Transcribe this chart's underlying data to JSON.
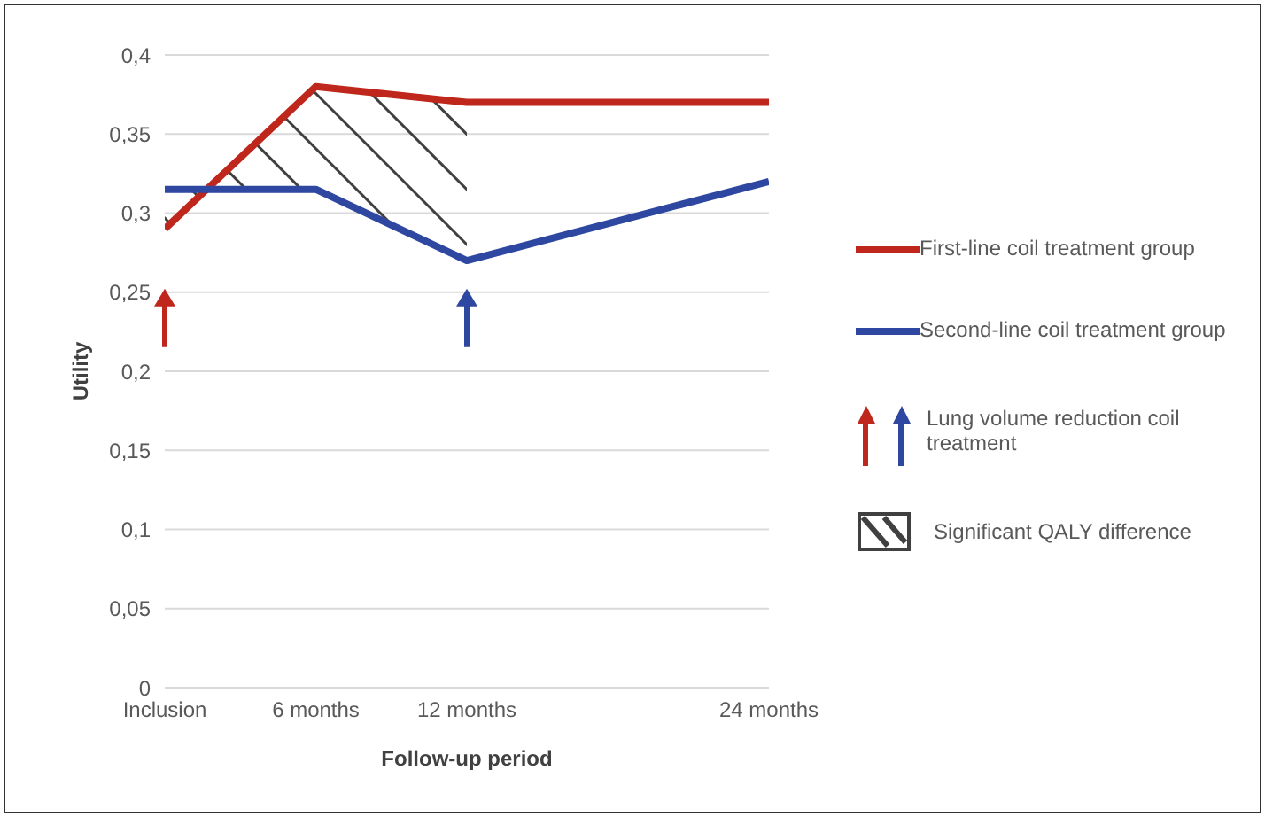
{
  "chart_data": {
    "type": "line",
    "xlabel": "Follow-up period",
    "ylabel": "Utility",
    "xlim": [
      0,
      24
    ],
    "xticks": [
      {
        "value": 0,
        "label": "Inclusion"
      },
      {
        "value": 6,
        "label": "6 months"
      },
      {
        "value": 12,
        "label": "12 months"
      },
      {
        "value": 24,
        "label": "24 months"
      }
    ],
    "ylim": [
      0,
      0.4
    ],
    "yticks": [
      0,
      {
        "value": 0.05,
        "label": "0,05"
      },
      {
        "value": 0.1,
        "label": "0,1"
      },
      {
        "value": 0.15,
        "label": "0,15"
      },
      {
        "value": 0.2,
        "label": "0,2"
      },
      {
        "value": 0.25,
        "label": "0,25"
      },
      {
        "value": 0.3,
        "label": "0,3"
      },
      {
        "value": 0.35,
        "label": "0,35"
      },
      {
        "value": 0.4,
        "label": "0,4"
      }
    ],
    "grid": "y",
    "legend": "right",
    "line_style": "solid",
    "marker": "none",
    "annotations": [
      "Lung volume reduction coil treatment",
      "Significant QALY difference"
    ],
    "series": [
      {
        "name": "First-line coil treatment group",
        "color": "#c0271c",
        "x": [
          0,
          6,
          12,
          24
        ],
        "values": [
          0.29,
          0.38,
          0.37,
          0.37
        ]
      },
      {
        "name": "Second-line coil treatment group",
        "color": "#2e47a0",
        "x": [
          0,
          6,
          12,
          24
        ],
        "values": [
          0.315,
          0.315,
          0.27,
          0.32
        ]
      }
    ]
  }
}
